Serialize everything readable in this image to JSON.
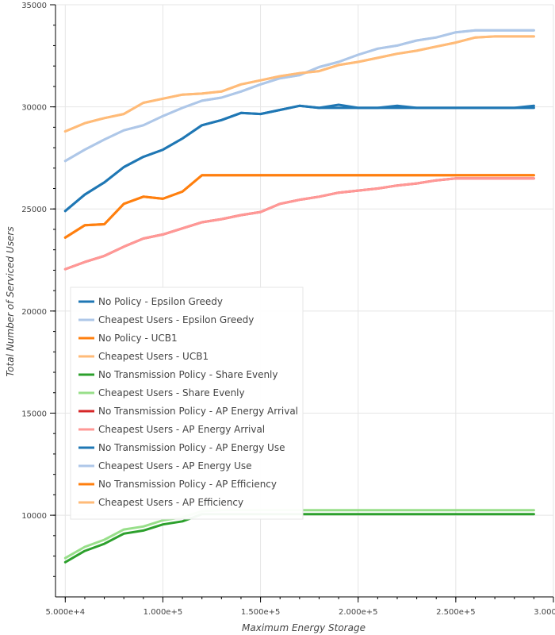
{
  "chart_data": {
    "type": "line",
    "xlabel": "Maximum Energy Storage",
    "ylabel": "Total Number of Serviced Users",
    "xlim": [
      45000,
      300000
    ],
    "ylim": [
      6000,
      35000
    ],
    "x_ticks": [
      {
        "value": 50000,
        "label": "5.000e+4"
      },
      {
        "value": 100000,
        "label": "1.000e+5"
      },
      {
        "value": 150000,
        "label": "1.500e+5"
      },
      {
        "value": 200000,
        "label": "2.000e+5"
      },
      {
        "value": 250000,
        "label": "2.500e+5"
      },
      {
        "value": 300000,
        "label": "3.000e+5"
      }
    ],
    "y_ticks": [
      {
        "value": 10000,
        "label": "10000"
      },
      {
        "value": 15000,
        "label": "15000"
      },
      {
        "value": 20000,
        "label": "20000"
      },
      {
        "value": 25000,
        "label": "25000"
      },
      {
        "value": 30000,
        "label": "30000"
      },
      {
        "value": 35000,
        "label": "35000"
      }
    ],
    "grid": true,
    "legend_position": "middle-left",
    "x": [
      50000,
      60000,
      70000,
      80000,
      90000,
      100000,
      110000,
      120000,
      130000,
      140000,
      150000,
      160000,
      170000,
      180000,
      190000,
      200000,
      210000,
      220000,
      230000,
      240000,
      250000,
      260000,
      270000,
      280000,
      290000
    ],
    "series": [
      {
        "name": "No Policy - Epsilon Greedy",
        "color": "#1f77b4",
        "values": [
          24900,
          25700,
          26300,
          27050,
          27550,
          27900,
          28450,
          29100,
          29350,
          29700,
          29650,
          29850,
          30050,
          29950,
          30100,
          29950,
          29950,
          29950,
          29950,
          29950,
          29950,
          29950,
          29950,
          29950,
          29950
        ]
      },
      {
        "name": "Cheapest Users - Epsilon Greedy",
        "color": "#aec7e8",
        "values": [
          27350,
          27900,
          28400,
          28850,
          29100,
          29550,
          29950,
          30300,
          30450,
          30750,
          31100,
          31400,
          31550,
          31950,
          32200,
          32550,
          32850,
          33000,
          33250,
          33400,
          33650,
          33750,
          33750,
          33750,
          33750
        ]
      },
      {
        "name": "No Policy - UCB1",
        "color": "#ff7f0e",
        "values": [
          23600,
          24200,
          24250,
          25250,
          25600,
          25500,
          25850,
          26650,
          26650,
          26650,
          26650,
          26650,
          26650,
          26650,
          26650,
          26650,
          26650,
          26650,
          26650,
          26650,
          26650,
          26650,
          26650,
          26650,
          26650
        ]
      },
      {
        "name": "Cheapest Users - UCB1",
        "color": "#ffbb78",
        "values": [
          28800,
          29200,
          29450,
          29650,
          30200,
          30400,
          30600,
          30650,
          30750,
          31100,
          31300,
          31500,
          31650,
          31750,
          32050,
          32200,
          32400,
          32600,
          32750,
          32950,
          33150,
          33400,
          33450,
          33450,
          33450
        ]
      },
      {
        "name": "No Transmission Policy - Share Evenly",
        "color": "#2ca02c",
        "values": [
          7700,
          8250,
          8600,
          9100,
          9250,
          9550,
          9700,
          10050,
          10050,
          10050,
          10050,
          10050,
          10050,
          10050,
          10050,
          10050,
          10050,
          10050,
          10050,
          10050,
          10050,
          10050,
          10050,
          10050,
          10050
        ]
      },
      {
        "name": "Cheapest Users - Share Evenly",
        "color": "#98df8a",
        "values": [
          7900,
          8450,
          8800,
          9300,
          9450,
          9750,
          9900,
          10200,
          10250,
          10250,
          10250,
          10250,
          10250,
          10250,
          10250,
          10250,
          10250,
          10250,
          10250,
          10250,
          10250,
          10250,
          10250,
          10250,
          10250
        ]
      },
      {
        "name": "No Transmission Policy - AP Energy Arrival",
        "color": "#d62728",
        "values": [
          22050,
          22400,
          22700,
          23150,
          23550,
          23750,
          24050,
          24350,
          24500,
          24700,
          24850,
          25250,
          25450,
          25600,
          25800,
          25900,
          26000,
          26150,
          26250,
          26400,
          26500,
          26500,
          26500,
          26500,
          26500
        ]
      },
      {
        "name": "Cheapest Users - AP Energy Arrival",
        "color": "#ff9896",
        "values": [
          22050,
          22400,
          22700,
          23150,
          23550,
          23750,
          24050,
          24350,
          24500,
          24700,
          24850,
          25250,
          25450,
          25600,
          25800,
          25900,
          26000,
          26150,
          26250,
          26400,
          26500,
          26500,
          26500,
          26500,
          26500
        ]
      },
      {
        "name": "No Transmission Policy - AP Energy Use",
        "color": "#1f77b4",
        "values": [
          24900,
          25700,
          26300,
          27050,
          27550,
          27900,
          28450,
          29100,
          29350,
          29700,
          29650,
          29850,
          30050,
          29950,
          29950,
          29950,
          29950,
          30050,
          29950,
          29950,
          29950,
          29950,
          29950,
          29950,
          30050
        ]
      },
      {
        "name": "Cheapest Users - AP Energy Use",
        "color": "#aec7e8",
        "values": [
          27350,
          27900,
          28400,
          28850,
          29100,
          29550,
          29950,
          30300,
          30450,
          30750,
          31100,
          31400,
          31550,
          31950,
          32200,
          32550,
          32850,
          33000,
          33250,
          33400,
          33650,
          33750,
          33750,
          33750,
          33750
        ]
      },
      {
        "name": "No Transmission Policy - AP Efficiency",
        "color": "#ff7f0e",
        "values": [
          23600,
          24200,
          24250,
          25250,
          25600,
          25500,
          25850,
          26650,
          26650,
          26650,
          26650,
          26650,
          26650,
          26650,
          26650,
          26650,
          26650,
          26650,
          26650,
          26650,
          26650,
          26650,
          26650,
          26650,
          26650
        ]
      },
      {
        "name": "Cheapest Users - AP Efficiency",
        "color": "#ffbb78",
        "values": [
          28800,
          29200,
          29450,
          29650,
          30200,
          30400,
          30600,
          30650,
          30750,
          31100,
          31300,
          31500,
          31650,
          31750,
          32050,
          32200,
          32400,
          32600,
          32750,
          32950,
          33150,
          33400,
          33450,
          33450,
          33450
        ]
      }
    ]
  }
}
